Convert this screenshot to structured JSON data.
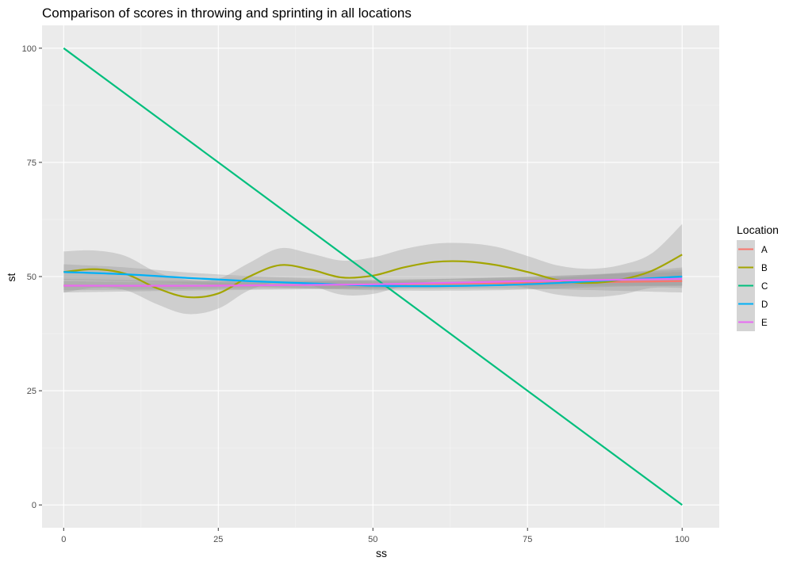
{
  "chart_data": {
    "type": "line",
    "title": "Comparison of scores in throwing and sprinting in all locations",
    "xlabel": "ss",
    "ylabel": "st",
    "xlim": [
      -3.5,
      106
    ],
    "ylim": [
      -5,
      105
    ],
    "x_ticks": [
      0,
      25,
      50,
      75,
      100
    ],
    "x_tick_labels": [
      "0",
      "25",
      "50",
      "75",
      "100"
    ],
    "y_ticks": [
      0,
      25,
      50,
      75,
      100
    ],
    "y_tick_labels": [
      "0",
      "25",
      "50",
      "75",
      "100"
    ],
    "grid": true,
    "panel_background": "#ebebeb",
    "ribbon_color": "#999999",
    "legend": {
      "title": "Location",
      "position": "right"
    },
    "series": [
      {
        "name": "A",
        "color": "#F8766D",
        "x": [
          0,
          25,
          50,
          75,
          100
        ],
        "y": [
          48,
          48,
          48.3,
          48.6,
          49
        ],
        "lower": [
          46.5,
          47,
          47.3,
          47.3,
          46.5
        ],
        "upper": [
          49.5,
          49,
          49.3,
          49.9,
          51.5
        ]
      },
      {
        "name": "B",
        "color": "#A3A500",
        "x": [
          0,
          5,
          10,
          15,
          20,
          25,
          30,
          35,
          40,
          45,
          50,
          55,
          60,
          65,
          70,
          75,
          80,
          85,
          90,
          95,
          100
        ],
        "y": [
          51,
          51.6,
          50.6,
          47.5,
          45.5,
          46.3,
          50,
          52.5,
          51.5,
          49.8,
          50.2,
          52,
          53.2,
          53.3,
          52.5,
          51,
          49.2,
          48.6,
          49.3,
          51.2,
          54.8
        ],
        "lower": [
          46.5,
          47.5,
          47,
          44,
          41.8,
          43,
          47,
          48.8,
          48,
          46,
          46.2,
          48,
          49,
          49.2,
          48.5,
          47.5,
          46,
          45.5,
          46,
          47.5,
          47.5
        ],
        "upper": [
          55.5,
          55.7,
          54.5,
          51,
          49.3,
          49.5,
          53,
          56.2,
          55,
          53.5,
          54.2,
          56,
          57.2,
          57.3,
          56.5,
          54.5,
          52.4,
          51.7,
          52.5,
          55,
          61.5
        ]
      },
      {
        "name": "C",
        "color": "#00BF7D",
        "x": [
          0,
          25,
          50,
          75,
          100
        ],
        "y": [
          100,
          75,
          50,
          25,
          0
        ]
      },
      {
        "name": "D",
        "color": "#00B0F6",
        "x": [
          0,
          10,
          20,
          30,
          40,
          50,
          60,
          70,
          80,
          90,
          100
        ],
        "y": [
          51,
          50.5,
          49.7,
          49,
          48.5,
          48,
          47.9,
          48.1,
          48.6,
          49.3,
          50
        ],
        "lower": [
          49.3,
          49,
          48.5,
          47.9,
          47.4,
          47,
          46.9,
          47,
          47.4,
          47.8,
          48
        ],
        "upper": [
          52.7,
          52,
          50.9,
          50.1,
          49.6,
          49,
          48.9,
          49.2,
          49.8,
          50.8,
          52
        ]
      },
      {
        "name": "E",
        "color": "#E76BF3",
        "x": [
          0,
          25,
          50,
          75,
          100
        ],
        "y": [
          48,
          48,
          48.3,
          49,
          49.5
        ],
        "lower": [
          47,
          47.3,
          47.5,
          48,
          48
        ],
        "upper": [
          49,
          48.7,
          49.1,
          50,
          51
        ]
      }
    ]
  }
}
